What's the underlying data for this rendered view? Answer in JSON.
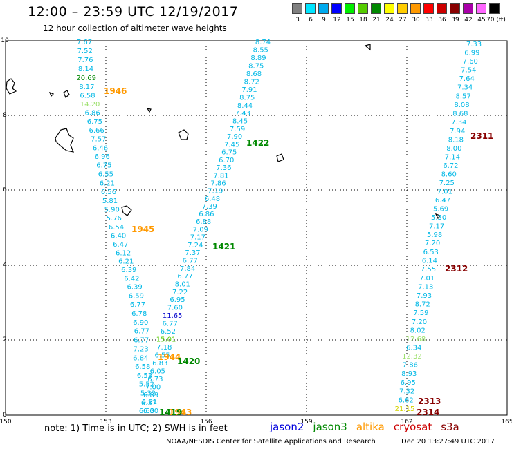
{
  "header": {
    "title": "12:00 – 23:59 UTC 12/19/2017",
    "subtitle": "12 hour collection of altimeter wave heights"
  },
  "color_scale": [
    {
      "label": "3",
      "color": "#808080"
    },
    {
      "label": "6",
      "color": "#00e5ff"
    },
    {
      "label": "9",
      "color": "#00aaee"
    },
    {
      "label": "12",
      "color": "#0000ff"
    },
    {
      "label": "15",
      "color": "#00ee00"
    },
    {
      "label": "18",
      "color": "#55cc00"
    },
    {
      "label": "21",
      "color": "#008800"
    },
    {
      "label": "24",
      "color": "#ffff00"
    },
    {
      "label": "27",
      "color": "#ffcc00"
    },
    {
      "label": "30",
      "color": "#ff9900"
    },
    {
      "label": "33",
      "color": "#ff0000"
    },
    {
      "label": "36",
      "color": "#cc0000"
    },
    {
      "label": "39",
      "color": "#880000"
    },
    {
      "label": "42",
      "color": "#aa00aa"
    },
    {
      "label": "45",
      "color": "#ff66ff"
    },
    {
      "label": "70 (ft)",
      "color": "#000000"
    }
  ],
  "map": {
    "x_ticks": [
      "150",
      "153",
      "156",
      "159",
      "162",
      "165"
    ],
    "y_ticks": [
      "10",
      "8",
      "6",
      "4",
      "2",
      "0"
    ],
    "tracks": [
      {
        "id": "track-1",
        "values": [
          "7.67",
          "7.52",
          "7.76",
          "8.14",
          "20.69",
          "8.17",
          "6.58",
          "14.20",
          "6.86",
          "6.75",
          "6.66",
          "7.57",
          "6.46",
          "6.96",
          "6.75",
          "6.55",
          "6.21",
          "6.56",
          "5.81",
          "5.90",
          "5.76",
          "6.54",
          "6.40",
          "6.47",
          "6.12",
          "6.21",
          "6.39",
          "6.42",
          "6.39",
          "6.59",
          "6.77",
          "6.78",
          "6.90",
          "6.77",
          "6.77",
          "7.23",
          "6.84",
          "6.58",
          "6.53",
          "5.52",
          "5.32",
          "5.81",
          "6.00"
        ]
      },
      {
        "id": "track-2",
        "values": [
          "8.74",
          "8.55",
          "8.89",
          "8.75",
          "8.68",
          "8.72",
          "7.91",
          "8.75",
          "8.44",
          "7.43",
          "8.45",
          "7.59",
          "7.90",
          "7.45",
          "6.75",
          "6.70",
          "7.36",
          "7.81",
          "7.86",
          "7.19",
          "6.48",
          "7.39",
          "6.86",
          "6.88",
          "7.09",
          "7.17",
          "7.24",
          "7.37",
          "6.77",
          "7.84",
          "6.77",
          "8.01",
          "7.22",
          "6.95",
          "7.60",
          "11.65",
          "6.77",
          "6.52",
          "15.01",
          "7.18",
          "6.55",
          "6.83",
          "6.05",
          "6.73",
          "7.00",
          "6.89",
          "6.37",
          "6.63"
        ]
      },
      {
        "id": "track-3",
        "values": [
          "7.33",
          "6.99",
          "7.60",
          "7.54",
          "7.64",
          "7.34",
          "8.57",
          "8.08",
          "8.68",
          "7.34",
          "7.94",
          "8.18",
          "8.00",
          "7.14",
          "6.72",
          "8.60",
          "7.25",
          "7.01",
          "6.47",
          "5.69",
          "5.30",
          "7.17",
          "5.98",
          "7.20",
          "6.53",
          "6.14",
          "7.55",
          "7.01",
          "7.13",
          "7.93",
          "8.72",
          "7.59",
          "7.20",
          "8.02",
          "12.68",
          "6.34",
          "12.32",
          "7.86",
          "8.93",
          "6.95",
          "7.32",
          "6.62",
          "21.15"
        ]
      }
    ],
    "pass_labels": [
      "1946",
      "1945",
      "1944",
      "1943",
      "1422",
      "1421",
      "1420",
      "1419",
      "2311",
      "2312",
      "2313",
      "2314"
    ],
    "note": "note: 1) Time is in UTC; 2) SWH is in feet"
  },
  "legend": [
    {
      "name": "jason2",
      "color": "#0000dd"
    },
    {
      "name": "jason3",
      "color": "#008800"
    },
    {
      "name": "altika",
      "color": "#ff9900"
    },
    {
      "name": "cryosat",
      "color": "#cc0000"
    },
    {
      "name": "s3a",
      "color": "#880000"
    }
  ],
  "footer": {
    "credit": "NOAA/NESDIS Center for Satellite Applications and Research",
    "timestamp": "Dec 20 13:27:49 UTC 2017"
  }
}
